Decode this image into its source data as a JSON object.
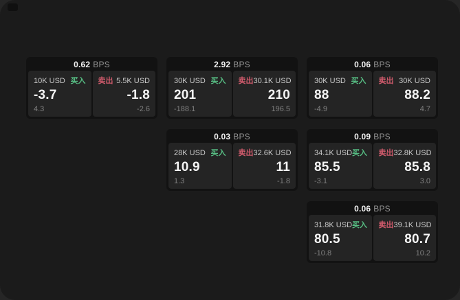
{
  "labels": {
    "bps_unit": "BPS",
    "buy": "买入",
    "sell": "卖出"
  },
  "colors": {
    "backdrop": "#262626",
    "window_bg": "#1b1b1b",
    "card_bg": "#121212",
    "panel_bg": "#242424",
    "buy_green": "#57bd83",
    "sell_red": "#ce5a6b",
    "value_white": "#f5f5f5",
    "label_gray": "#c9c9c9",
    "dim_gray": "#808080"
  },
  "cards": [
    {
      "bps": "0.62",
      "buy": {
        "amount": "10K USD",
        "price": "-3.7",
        "delta": "4.3"
      },
      "sell": {
        "amount": "5.5K USD",
        "price": "-1.8",
        "delta": "-2.6"
      }
    },
    {
      "bps": "2.92",
      "buy": {
        "amount": "30K USD",
        "price": "201",
        "delta": "-188.1"
      },
      "sell": {
        "amount": "30.1K USD",
        "price": "210",
        "delta": "196.5"
      }
    },
    {
      "bps": "0.06",
      "buy": {
        "amount": "30K USD",
        "price": "88",
        "delta": "-4.9"
      },
      "sell": {
        "amount": "30K USD",
        "price": "88.2",
        "delta": "4.7"
      }
    },
    {
      "bps": "0.03",
      "buy": {
        "amount": "28K USD",
        "price": "10.9",
        "delta": "1.3"
      },
      "sell": {
        "amount": "32.6K USD",
        "price": "11",
        "delta": "-1.8"
      }
    },
    {
      "bps": "0.09",
      "buy": {
        "amount": "34.1K USD",
        "price": "85.5",
        "delta": "-3.1"
      },
      "sell": {
        "amount": "32.8K USD",
        "price": "85.8",
        "delta": "3.0"
      }
    },
    {
      "bps": "0.06",
      "buy": {
        "amount": "31.8K USD",
        "price": "80.5",
        "delta": "-10.8"
      },
      "sell": {
        "amount": "39.1K USD",
        "price": "80.7",
        "delta": "10.2"
      }
    }
  ]
}
